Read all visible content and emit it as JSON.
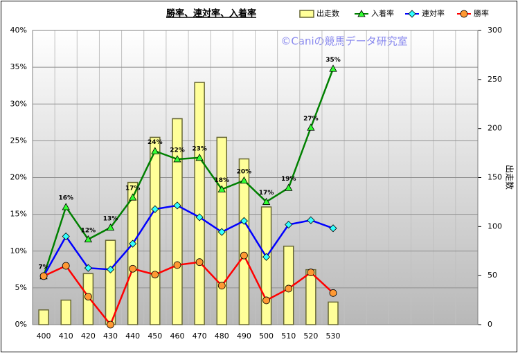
{
  "chart_data": {
    "type": "bar",
    "title": "勝率、連対率、入着率",
    "annotation": "©Caniの競馬データ研究室",
    "y2_label": "出走数",
    "categories": [
      "400",
      "410",
      "420",
      "430",
      "440",
      "450",
      "460",
      "470",
      "480",
      "490",
      "500",
      "510",
      "520",
      "530",
      null,
      null,
      null,
      null,
      null,
      null
    ],
    "ylim": [
      0,
      40
    ],
    "yticks": [
      {
        "value": 0,
        "label": "0%"
      },
      {
        "value": 5,
        "label": "5%"
      },
      {
        "value": 10,
        "label": "10%"
      },
      {
        "value": 15,
        "label": "15%"
      },
      {
        "value": 20,
        "label": "20%"
      },
      {
        "value": 25,
        "label": "25%"
      },
      {
        "value": 30,
        "label": "30%"
      },
      {
        "value": 35,
        "label": "35%"
      },
      {
        "value": 40,
        "label": "40%"
      }
    ],
    "y2lim": [
      0,
      300
    ],
    "y2ticks": [
      0,
      50,
      100,
      150,
      200,
      250,
      300
    ],
    "grid": true,
    "legend": "top-right",
    "series": [
      {
        "name": "出走数",
        "type": "bar",
        "axis": "y2",
        "color": "#ffff99",
        "edge_color": "#666633",
        "values": [
          15,
          25,
          52,
          86,
          145,
          191,
          210,
          247,
          191,
          169,
          120,
          80,
          56,
          23,
          null,
          null,
          null,
          null,
          null,
          null
        ]
      },
      {
        "name": "入着率",
        "type": "line",
        "color": "#008000",
        "marker": "triangle",
        "marker_color": "#33ff33",
        "values": [
          6.6,
          16.0,
          11.6,
          13.2,
          17.3,
          23.6,
          22.5,
          22.7,
          18.4,
          19.6,
          16.7,
          18.6,
          26.8,
          34.8,
          null,
          null,
          null,
          null,
          null,
          null
        ],
        "value_labels": [
          "7%",
          "16%",
          "12%",
          "13%",
          "17%",
          "24%",
          "22%",
          "23%",
          "18%",
          "20%",
          "17%",
          "19%",
          "27%",
          "35%",
          null,
          null,
          null,
          null,
          null,
          null
        ]
      },
      {
        "name": "連対率",
        "type": "line",
        "color": "#0000ff",
        "marker": "diamond",
        "marker_color": "#33ffff",
        "values": [
          6.6,
          12.0,
          7.7,
          7.5,
          11.0,
          15.7,
          16.2,
          14.6,
          12.6,
          14.1,
          9.2,
          13.6,
          14.2,
          13.1,
          null,
          null,
          null,
          null,
          null,
          null
        ]
      },
      {
        "name": "勝率",
        "type": "line",
        "color": "#ff0000",
        "marker": "circle",
        "marker_color": "#ff9933",
        "values": [
          6.6,
          8.0,
          3.8,
          0,
          7.6,
          6.8,
          8.1,
          8.5,
          5.3,
          9.4,
          3.3,
          4.9,
          7.1,
          4.3,
          null,
          null,
          null,
          null,
          null,
          null
        ]
      }
    ]
  }
}
